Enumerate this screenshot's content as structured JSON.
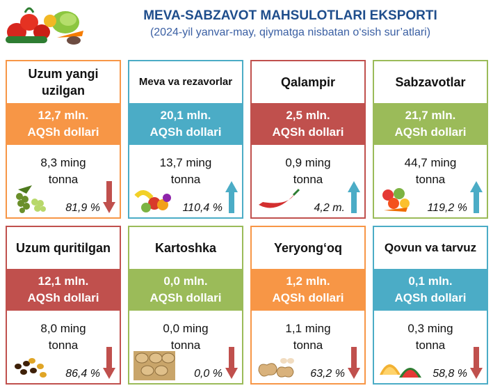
{
  "header": {
    "title": "MEVA-SABZAVOT MAHSULOTLARI EKSPORTI",
    "subtitle": "(2024-yil yanvar-may, qiymatga nisbatan o‘sish sur’atlari)"
  },
  "colors": {
    "orange": "#f79646",
    "blue": "#4bacc6",
    "red": "#c0504d",
    "green": "#9bbb59",
    "arrow_up": "#4bacc6",
    "arrow_down": "#c0504d"
  },
  "cards": [
    {
      "name": "Uzum yangi uzilgan",
      "value_line1": "12,7 mln.",
      "value_line2": "AQSh dollari",
      "qty_line1": "8,3 ming",
      "qty_line2": "tonna",
      "growth": "81,9 %",
      "trend": "down",
      "color": "orange",
      "icon": "grapes-icon"
    },
    {
      "name": "Meva va rezavorlar",
      "value_line1": "20,1 mln.",
      "value_line2": "AQSh dollari",
      "qty_line1": "13,7 ming",
      "qty_line2": "tonna",
      "growth": "110,4 %",
      "trend": "up",
      "color": "blue",
      "icon": "fruit-basket-icon"
    },
    {
      "name": "Qalampir",
      "value_line1": "2,5 mln.",
      "value_line2": "AQSh dollari",
      "qty_line1": "0,9 ming",
      "qty_line2": "tonna",
      "growth": "4,2 m.",
      "trend": "up",
      "color": "red",
      "icon": "chili-pepper-icon"
    },
    {
      "name": "Sabzavotlar",
      "value_line1": "21,7 mln.",
      "value_line2": "AQSh dollari",
      "qty_line1": "44,7 ming",
      "qty_line2": "tonna",
      "growth": "119,2 %",
      "trend": "up",
      "color": "green",
      "icon": "vegetables-icon"
    },
    {
      "name": "Uzum quritilgan",
      "value_line1": "12,1 mln.",
      "value_line2": "AQSh dollari",
      "qty_line1": "8,0 ming",
      "qty_line2": "tonna",
      "growth": "86,4 %",
      "trend": "down",
      "color": "red",
      "icon": "raisins-icon"
    },
    {
      "name": "Kartoshka",
      "value_line1": "0,0 mln.",
      "value_line2": "AQSh dollari",
      "qty_line1": "0,0 ming",
      "qty_line2": "tonna",
      "growth": "0,0 %",
      "trend": "down",
      "color": "green",
      "icon": "potatoes-icon"
    },
    {
      "name": "Yeryong‘oq",
      "value_line1": "1,2 mln.",
      "value_line2": "AQSh dollari",
      "qty_line1": "1,1 ming",
      "qty_line2": "tonna",
      "growth": "63,2 %",
      "trend": "down",
      "color": "orange",
      "icon": "peanuts-icon"
    },
    {
      "name": "Qovun va tarvuz",
      "value_line1": "0,1 mln.",
      "value_line2": "AQSh dollari",
      "qty_line1": "0,3 ming",
      "qty_line2": "tonna",
      "growth": "58,8 %",
      "trend": "down",
      "color": "blue",
      "icon": "melon-icon"
    }
  ]
}
